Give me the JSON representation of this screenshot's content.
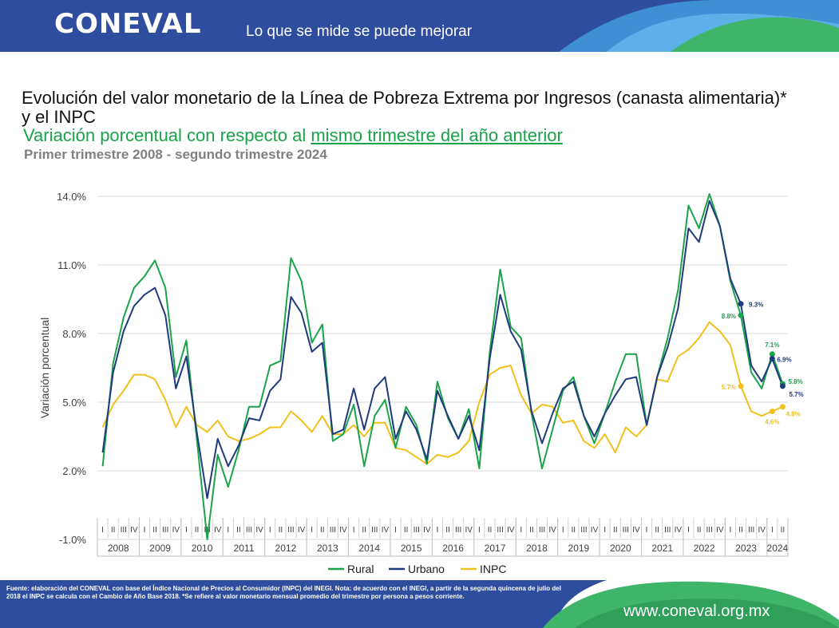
{
  "header": {
    "logo": "CONEVAL",
    "slogan": "Lo que se mide se puede mejorar"
  },
  "title": "Evolución del valor monetario de la Línea de Pobreza Extrema por Ingresos (canasta alimentaria)* y el INPC",
  "subtitle_part1": "Variación porcentual con respecto al ",
  "subtitle_part2": "mismo trimestre del año anterior",
  "period": "Primer trimestre 2008 - segundo trimestre 2024",
  "chart_data": {
    "type": "line",
    "ylabel": "Variación porcentual",
    "ylim": [
      -1.0,
      14.0
    ],
    "yticks": [
      "14.0%",
      "11.0%",
      "8.0%",
      "5.0%",
      "2.0%",
      "-1.0%"
    ],
    "years": [
      "2008",
      "2009",
      "2010",
      "2011",
      "2012",
      "2013",
      "2014",
      "2015",
      "2016",
      "2017",
      "2018",
      "2019",
      "2020",
      "2021",
      "2022",
      "2023",
      "2024"
    ],
    "quarter_labels": [
      "I",
      "II",
      "III",
      "IV"
    ],
    "series": [
      {
        "name": "Rural",
        "color": "#1aa34a",
        "values": [
          2.2,
          6.7,
          8.7,
          10.0,
          10.5,
          11.2,
          10.0,
          6.1,
          7.7,
          3.4,
          -1.0,
          2.7,
          1.3,
          2.9,
          4.8,
          4.8,
          6.6,
          6.8,
          11.3,
          10.3,
          7.6,
          8.4,
          3.3,
          3.6,
          4.9,
          2.2,
          4.4,
          5.1,
          3.0,
          4.8,
          4.0,
          2.3,
          5.9,
          4.3,
          3.4,
          4.7,
          2.1,
          7.2,
          10.8,
          8.3,
          7.8,
          4.5,
          2.1,
          3.8,
          5.5,
          6.1,
          4.4,
          3.2,
          4.5,
          5.9,
          7.1,
          7.1,
          4.0,
          6.1,
          7.8,
          9.9,
          13.6,
          12.6,
          14.1,
          12.7,
          10.3,
          8.8,
          6.3,
          5.6,
          7.1,
          5.8
        ]
      },
      {
        "name": "Urbano",
        "color": "#1f3a7d",
        "values": [
          2.8,
          6.3,
          8.1,
          9.2,
          9.7,
          10.0,
          8.8,
          5.6,
          7.0,
          3.7,
          0.8,
          3.4,
          2.2,
          3.1,
          4.3,
          4.2,
          5.5,
          6.0,
          9.6,
          8.9,
          7.2,
          7.6,
          3.6,
          3.8,
          5.6,
          3.8,
          5.6,
          6.1,
          3.4,
          4.6,
          3.8,
          2.5,
          5.5,
          4.4,
          3.4,
          4.4,
          2.9,
          6.9,
          9.7,
          8.1,
          7.3,
          4.6,
          3.2,
          4.5,
          5.6,
          5.9,
          4.4,
          3.5,
          4.5,
          5.3,
          6.0,
          6.1,
          4.0,
          6.1,
          7.4,
          9.1,
          12.6,
          12.0,
          13.8,
          12.7,
          10.4,
          9.3,
          6.6,
          5.9,
          6.9,
          5.7
        ]
      },
      {
        "name": "INPC",
        "color": "#f2c01c",
        "values": [
          3.9,
          4.9,
          5.5,
          6.2,
          6.2,
          6.0,
          5.1,
          3.9,
          4.8,
          4.0,
          3.7,
          4.2,
          3.5,
          3.3,
          3.4,
          3.6,
          3.9,
          3.9,
          4.6,
          4.2,
          3.7,
          4.4,
          3.6,
          3.6,
          4.0,
          3.5,
          4.1,
          4.1,
          3.0,
          2.9,
          2.6,
          2.3,
          2.7,
          2.6,
          2.8,
          3.3,
          5.0,
          6.2,
          6.5,
          6.6,
          5.3,
          4.5,
          4.9,
          4.8,
          4.1,
          4.2,
          3.3,
          3.0,
          3.6,
          2.8,
          3.9,
          3.5,
          4.0,
          6.0,
          5.9,
          7.0,
          7.3,
          7.8,
          8.5,
          8.1,
          7.5,
          5.7,
          4.6,
          4.4,
          4.6,
          4.8
        ]
      }
    ],
    "annotations": [
      {
        "series": "Urbano",
        "index": 61,
        "label": "9.3%"
      },
      {
        "series": "Rural",
        "index": 61,
        "label": "8.8%"
      },
      {
        "series": "INPC",
        "index": 61,
        "label": "5.7%"
      },
      {
        "series": "Rural",
        "index": 64,
        "label": "7.1%"
      },
      {
        "series": "Urbano",
        "index": 64,
        "label": "6.9%"
      },
      {
        "series": "INPC",
        "index": 64,
        "label": "4.6%"
      },
      {
        "series": "Rural",
        "index": 65,
        "label": "5.8%"
      },
      {
        "series": "Urbano",
        "index": 65,
        "label": "5.7%"
      },
      {
        "series": "INPC",
        "index": 65,
        "label": "4.8%"
      }
    ],
    "legend": [
      "Rural",
      "Urbano",
      "INPC"
    ],
    "legend_position": "bottom",
    "grid": true
  },
  "footer": {
    "notes": "Fuente: elaboración del CONEVAL con base del Índice Nacional de Precios al Consumidor (INPC) del INEGI. Nota: de acuerdo con el INEGI, a partir de la segunda quincena de julio del 2018 el INPC se calcula con el Cambio de Año Base 2018. *Se refiere al valor monetario mensual promedio del trimestre por persona a pesos corriente.",
    "website": "www.coneval.org.mx"
  }
}
